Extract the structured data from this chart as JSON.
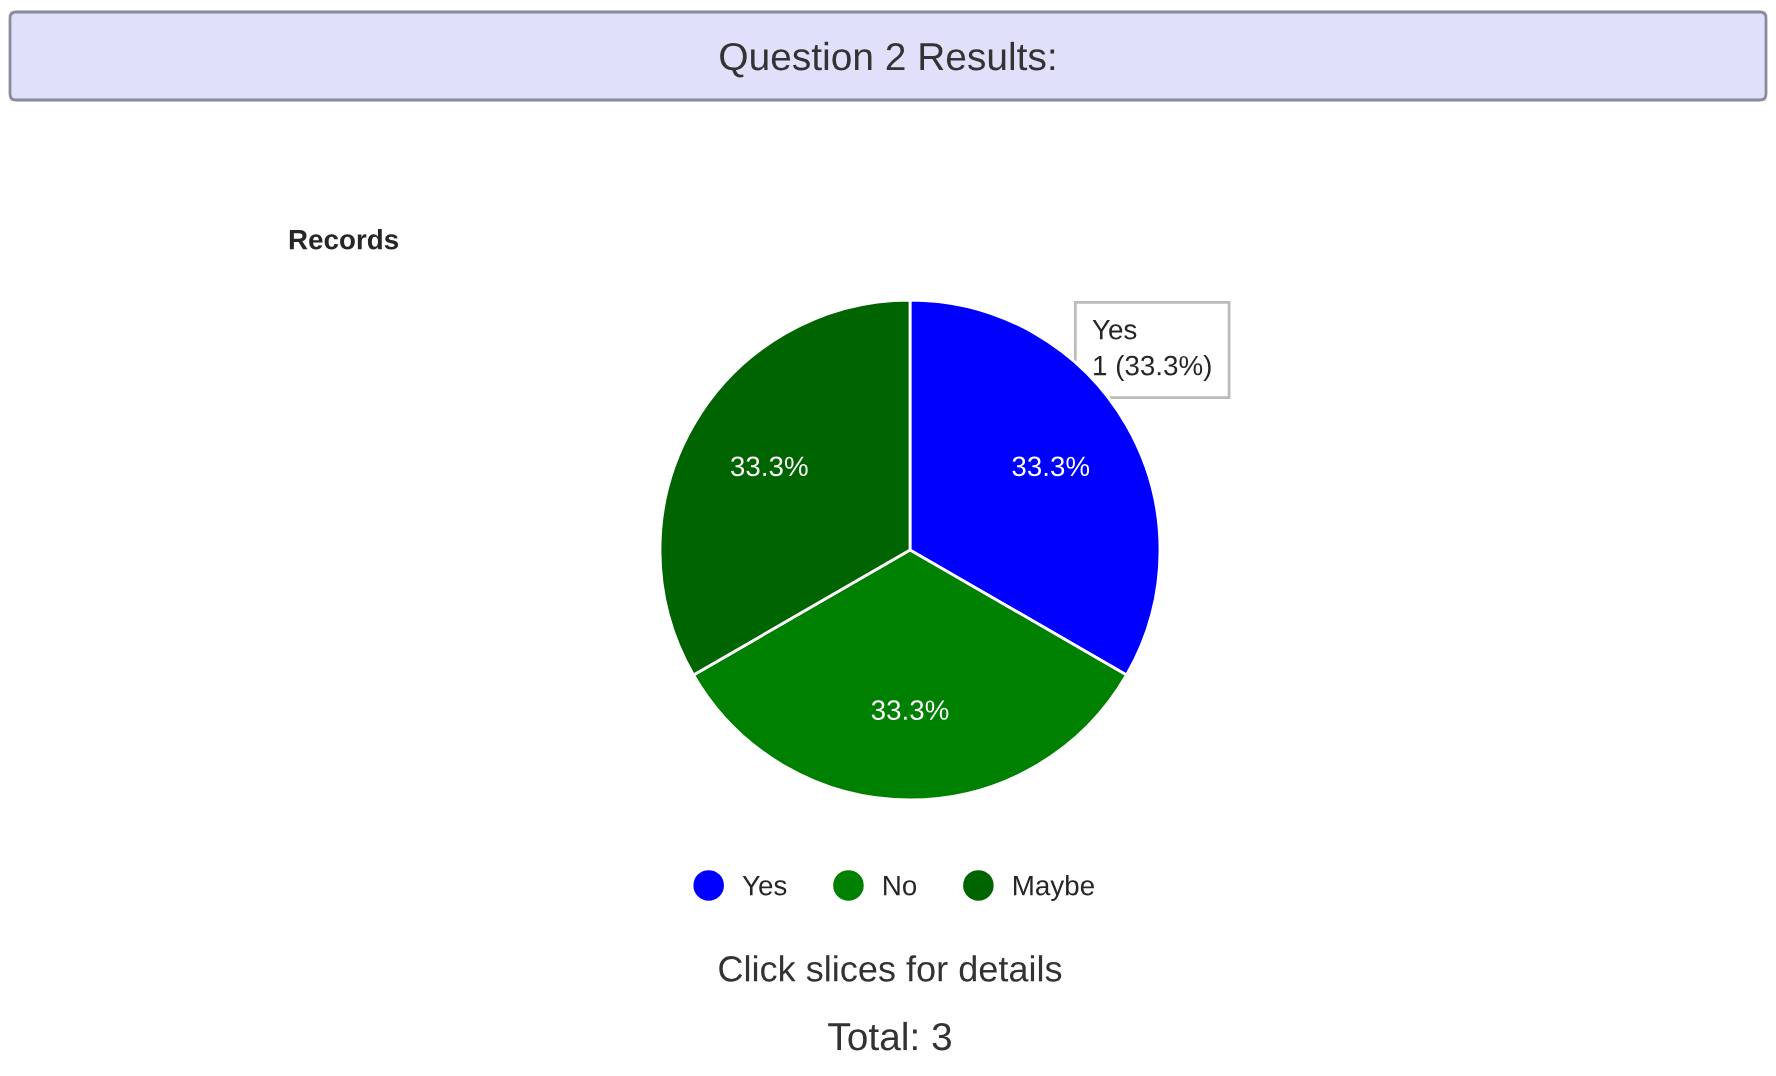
{
  "chart_data": {
    "type": "pie",
    "title": "Question 2 Results:",
    "subtitle": "Records",
    "categories": [
      "Yes",
      "No",
      "Maybe"
    ],
    "values": [
      33.3,
      33.3,
      33.3
    ],
    "colors": [
      "#0000ff",
      "#008000",
      "#006400"
    ],
    "value_labels": [
      "33.3%",
      "33.3%",
      "33.3%"
    ],
    "legend": "bottom",
    "annotations": [
      "Yes\n1 (33.3%)",
      "Click slices for details",
      "Total: 3"
    ]
  }
}
